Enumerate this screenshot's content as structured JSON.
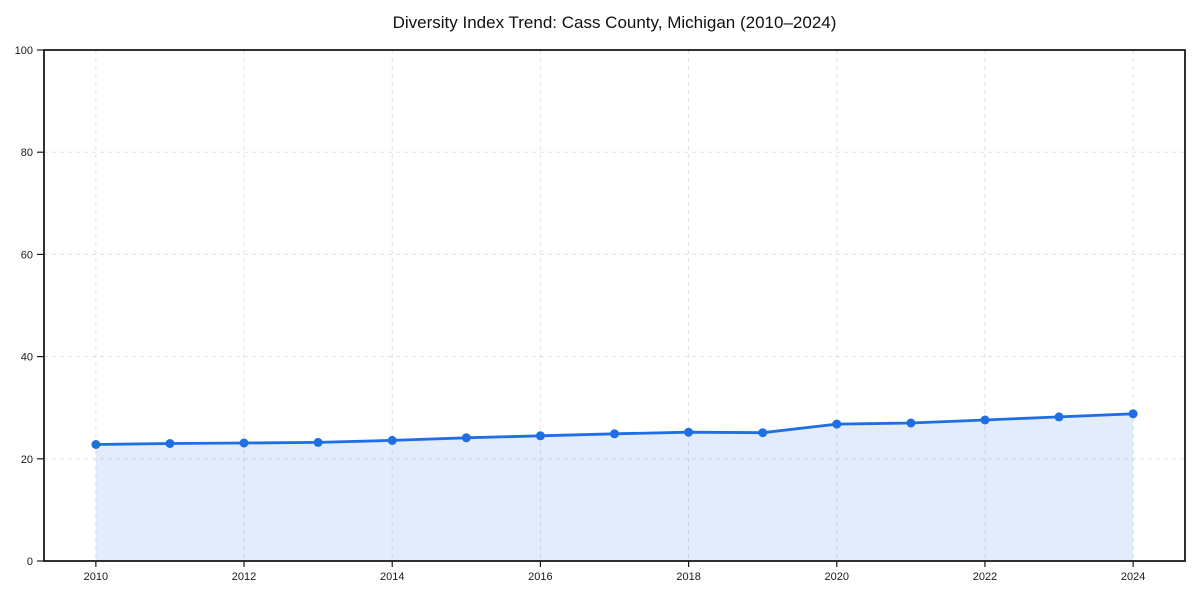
{
  "chart_data": {
    "type": "line",
    "title": "Diversity Index Trend: Cass County, Michigan (2010–2024)",
    "xlabel": "",
    "ylabel": "",
    "x": [
      2010,
      2011,
      2012,
      2013,
      2014,
      2015,
      2016,
      2017,
      2018,
      2019,
      2020,
      2021,
      2022,
      2023,
      2024
    ],
    "series": [
      {
        "name": "Diversity Index",
        "values": [
          22.8,
          23.0,
          23.1,
          23.2,
          23.6,
          24.1,
          24.5,
          24.9,
          25.2,
          25.1,
          26.8,
          27.0,
          27.6,
          28.2,
          28.8
        ]
      }
    ],
    "xlim": [
      2009.3,
      2024.7
    ],
    "ylim": [
      0,
      100
    ],
    "xticks": [
      2010,
      2012,
      2014,
      2016,
      2018,
      2020,
      2022,
      2024
    ],
    "yticks": [
      0,
      20,
      40,
      60,
      80,
      100
    ],
    "grid": true,
    "grid_style": "dashed",
    "legend": "none",
    "area_fill": true,
    "marker": "circle",
    "colors": {
      "line": "#1f6ee3",
      "marker": "#1f6ee3",
      "fill": "rgba(31,110,227,0.13)",
      "grid": "#e0e0e0",
      "axis": "#1a1a1a",
      "text": "#1a1a1a",
      "title": "#111111",
      "background": "#ffffff"
    }
  }
}
